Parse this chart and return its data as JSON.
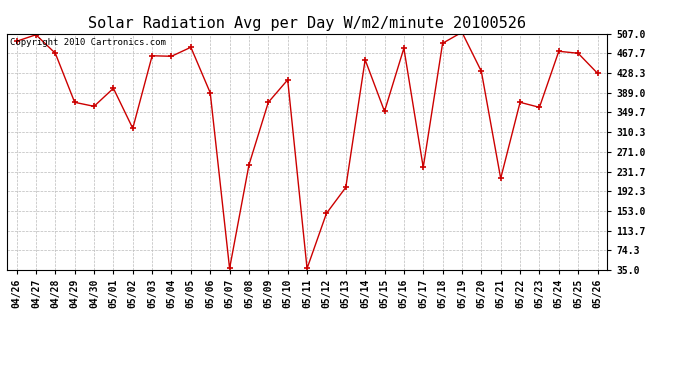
{
  "title": "Solar Radiation Avg per Day W/m2/minute 20100526",
  "copyright_text": "Copyright 2010 Cartronics.com",
  "x_labels": [
    "04/26",
    "04/27",
    "04/28",
    "04/29",
    "04/30",
    "05/01",
    "05/02",
    "05/03",
    "05/04",
    "05/05",
    "05/06",
    "05/07",
    "05/08",
    "05/09",
    "05/10",
    "05/11",
    "05/12",
    "05/13",
    "05/14",
    "05/15",
    "05/16",
    "05/17",
    "05/18",
    "05/19",
    "05/20",
    "05/21",
    "05/22",
    "05/23",
    "05/24",
    "05/25",
    "05/26"
  ],
  "y_values": [
    492,
    505,
    468,
    370,
    362,
    398,
    318,
    463,
    462,
    480,
    389,
    38,
    245,
    370,
    415,
    38,
    148,
    200,
    455,
    352,
    478,
    240,
    488,
    510,
    432,
    218,
    370,
    360,
    472,
    468,
    428
  ],
  "y_ticks": [
    35.0,
    74.3,
    113.7,
    153.0,
    192.3,
    231.7,
    271.0,
    310.3,
    349.7,
    389.0,
    428.3,
    467.7,
    507.0
  ],
  "line_color": "#cc0000",
  "marker_color": "#cc0000",
  "bg_color": "#ffffff",
  "plot_bg_color": "#ffffff",
  "grid_color": "#bbbbbb",
  "title_fontsize": 11,
  "tick_fontsize": 7.0,
  "copyright_fontsize": 6.5,
  "ylim": [
    35.0,
    507.0
  ],
  "figsize": [
    6.9,
    3.75
  ],
  "dpi": 100
}
